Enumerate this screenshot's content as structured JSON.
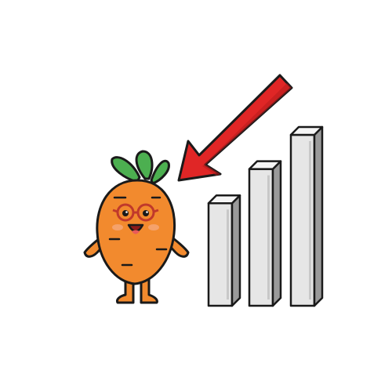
{
  "illustration": {
    "subject": "carrot-mascot",
    "pointer": "red-arrow",
    "bars": {
      "count": 3,
      "relative_heights": [
        0.6,
        0.8,
        1.0
      ]
    }
  },
  "colors": {
    "background": "#ffffff",
    "outline": "#1a1a1a",
    "carrot_body": "#f28a2e",
    "carrot_shade": "#e37a1f",
    "leaf": "#4caf50",
    "leaf_light": "#6cc24a",
    "cheek": "#f5a26b",
    "mouth": "#8b1a1a",
    "tongue": "#e85a5a",
    "glasses_frame": "#c0392b",
    "arrow": "#e02626",
    "arrow_shade": "#b71c1c",
    "bar_front": "#e6e6e6",
    "bar_side": "#9a9a9a",
    "bar_top": "#f5f5f5"
  }
}
